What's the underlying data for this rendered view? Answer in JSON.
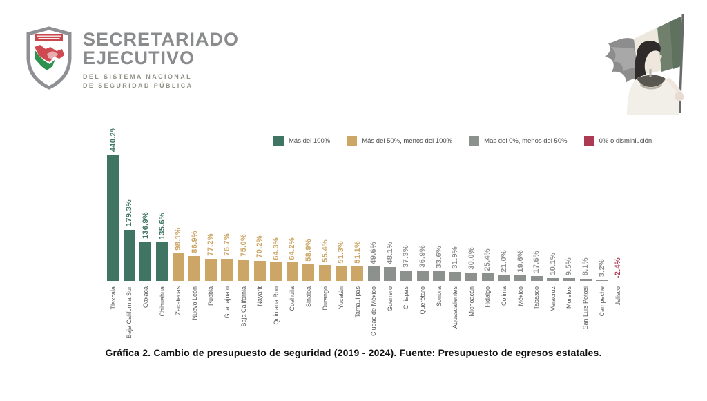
{
  "header": {
    "org_title_line1": "SECRETARIADO",
    "org_title_line2": "EJECUTIVO",
    "org_sub_line1": "DEL SISTEMA NACIONAL",
    "org_sub_line2": "DE SEGURIDAD PÚBLICA",
    "shield_banner_text": "SISTEMA NACIONAL DE SEGURIDAD PÚBLICA",
    "illustration_subject": "woman-holding-mexican-flag"
  },
  "legend": {
    "items": [
      {
        "label": "Más del 100%",
        "color": "#3F7562"
      },
      {
        "label": "Más del 50%, menos del 100%",
        "color": "#CCA666"
      },
      {
        "label": "Más del 0%, menos del 50%",
        "color": "#8D918D"
      },
      {
        "label": "0% o disminiución",
        "color": "#AC3A53"
      }
    ]
  },
  "chart_data": {
    "type": "bar",
    "title": "Cambio de presupuesto de seguridad (2019 - 2024)",
    "unit": "%",
    "ylim": [
      -10,
      460
    ],
    "grid": false,
    "legend_position": "top",
    "categories": [
      "Tlaxcala",
      "Baja California Sur",
      "Oaxaca",
      "Chihuahua",
      "Zacatecas",
      "Nuevo León",
      "Puebla",
      "Guanajuato",
      "Baja California",
      "Nayarit",
      "Quintana Roo",
      "Coahuila",
      "Sinaloa",
      "Durango",
      "Yucatán",
      "Tamaulipas",
      "Ciudad de México",
      "Guerrero",
      "Chiapas",
      "Querétaro",
      "Sonora",
      "Aguascalientes",
      "Michoacán",
      "Hidalgo",
      "Colima",
      "México",
      "Tabasco",
      "Veracruz",
      "Morelos",
      "San Luis Potosi",
      "Campeche",
      "Jalisco"
    ],
    "values": [
      440.2,
      179.3,
      136.9,
      135.6,
      98.1,
      86.9,
      77.2,
      76.7,
      75.0,
      70.2,
      64.3,
      64.2,
      58.9,
      55.4,
      51.3,
      51.1,
      49.6,
      48.1,
      37.3,
      36.9,
      33.6,
      31.9,
      30.0,
      25.4,
      21.0,
      19.6,
      17.6,
      10.1,
      9.5,
      8.1,
      3.2,
      -2.4
    ],
    "category_thresholds": {
      "green_above": 100,
      "tan_above": 50,
      "gray_above": 0,
      "red_at_or_below": 0
    }
  },
  "caption": "Gráfica 2. Cambio de presupuesto de seguridad (2019 - 2024). Fuente: Presupuesto de egresos estatales."
}
